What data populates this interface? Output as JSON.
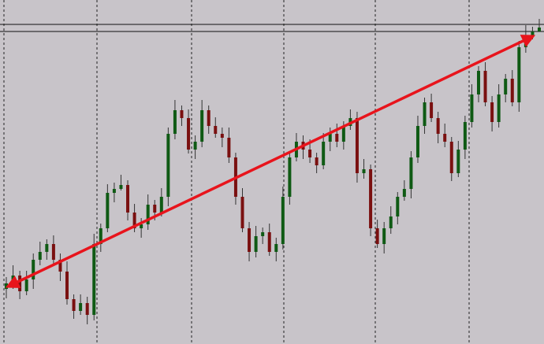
{
  "chart_data": {
    "type": "candlestick",
    "open": [
      70,
      77,
      87,
      67,
      82,
      107,
      117,
      127,
      107,
      92,
      57,
      42,
      52,
      37,
      127,
      147,
      192,
      197,
      202,
      167,
      147,
      152,
      177,
      167,
      187,
      267,
      297,
      287,
      247,
      257,
      297,
      277,
      267,
      262,
      237,
      187,
      147,
      117,
      137,
      142,
      117,
      127,
      187,
      237,
      257,
      247,
      237,
      227,
      257,
      267,
      257,
      277,
      287,
      217,
      222,
      147,
      127,
      147,
      162,
      187,
      197,
      237,
      277,
      307,
      287,
      267,
      257,
      217,
      247,
      282,
      317,
      347,
      307,
      282,
      317,
      337,
      307,
      377,
      392,
      397
    ],
    "high": [
      85,
      100,
      93,
      93,
      115,
      130,
      133,
      138,
      115,
      105,
      63,
      63,
      60,
      140,
      153,
      203,
      205,
      215,
      208,
      178,
      160,
      190,
      183,
      198,
      275,
      310,
      303,
      298,
      265,
      310,
      303,
      288,
      275,
      275,
      243,
      198,
      155,
      150,
      148,
      153,
      135,
      200,
      243,
      268,
      265,
      260,
      243,
      268,
      275,
      280,
      283,
      298,
      295,
      235,
      228,
      158,
      155,
      175,
      193,
      208,
      245,
      290,
      313,
      318,
      295,
      280,
      263,
      258,
      290,
      330,
      353,
      358,
      315,
      330,
      343,
      348,
      385,
      405,
      403,
      413
    ],
    "low": [
      58,
      70,
      57,
      62,
      70,
      100,
      107,
      102,
      80,
      50,
      32,
      37,
      25,
      30,
      117,
      142,
      180,
      195,
      157,
      142,
      135,
      145,
      157,
      162,
      175,
      260,
      277,
      242,
      235,
      250,
      267,
      262,
      250,
      230,
      177,
      142,
      105,
      110,
      127,
      112,
      105,
      120,
      177,
      232,
      235,
      230,
      217,
      222,
      245,
      250,
      247,
      272,
      205,
      210,
      137,
      122,
      115,
      140,
      152,
      182,
      185,
      230,
      267,
      282,
      255,
      250,
      207,
      212,
      235,
      275,
      307,
      302,
      270,
      275,
      307,
      302,
      295,
      370,
      387,
      397
    ],
    "close": [
      77,
      87,
      67,
      82,
      107,
      117,
      127,
      107,
      92,
      57,
      42,
      52,
      37,
      127,
      147,
      192,
      197,
      202,
      167,
      147,
      152,
      177,
      167,
      187,
      267,
      297,
      287,
      247,
      257,
      297,
      277,
      267,
      262,
      237,
      187,
      147,
      117,
      137,
      142,
      117,
      127,
      187,
      237,
      257,
      247,
      237,
      227,
      257,
      267,
      257,
      277,
      287,
      217,
      222,
      147,
      127,
      147,
      162,
      187,
      197,
      237,
      277,
      307,
      287,
      267,
      257,
      217,
      247,
      282,
      317,
      347,
      307,
      282,
      317,
      337,
      307,
      377,
      392,
      397,
      402
    ],
    "ylim": [
      0,
      437
    ],
    "up_color": "#0f5a14",
    "down_color": "#7a1010",
    "wick_color": "#333333"
  }
}
